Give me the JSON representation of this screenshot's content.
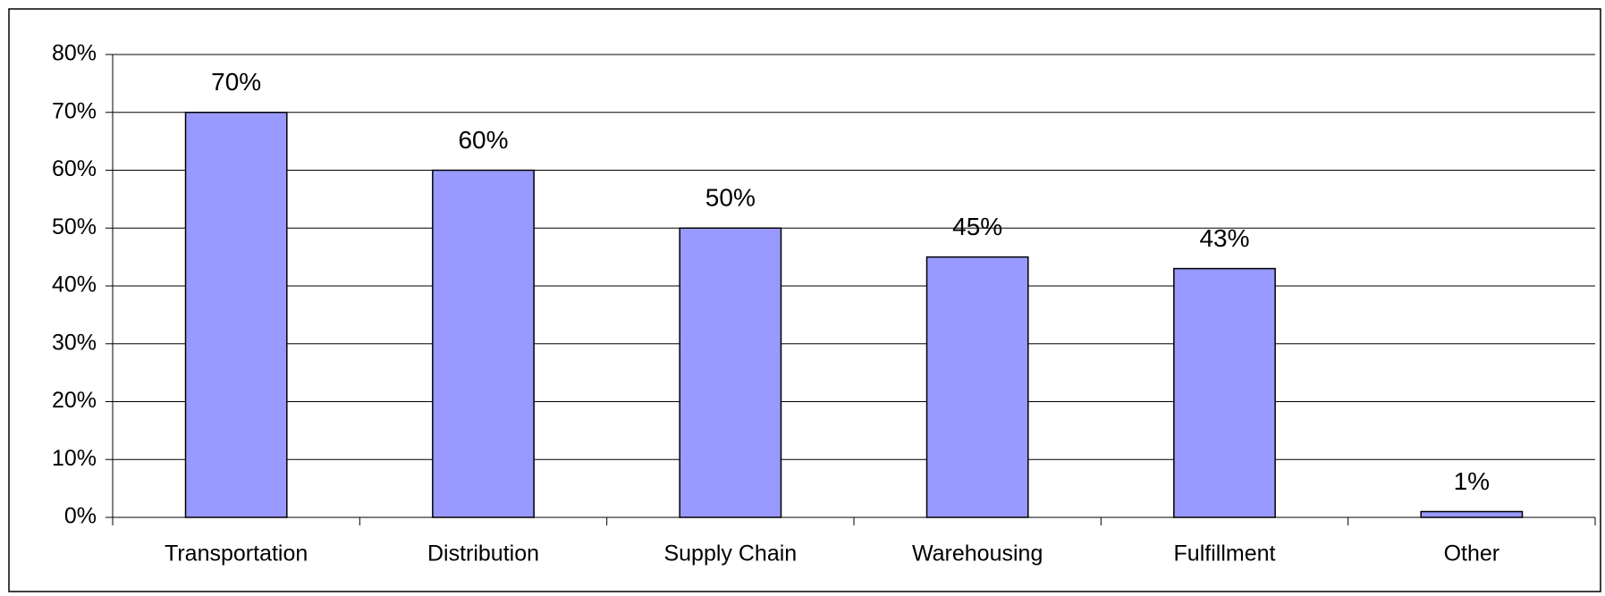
{
  "chart_data": {
    "type": "bar",
    "categories": [
      "Transportation",
      "Distribution",
      "Supply Chain",
      "Warehousing",
      "Fulfillment",
      "Other"
    ],
    "values": [
      70,
      60,
      50,
      45,
      43,
      1
    ],
    "value_labels": [
      "70%",
      "60%",
      "50%",
      "45%",
      "43%",
      "1%"
    ],
    "color": "#9999ff",
    "ylim": [
      0,
      80
    ],
    "yticks": [
      {
        "value": 0,
        "label": "0%"
      },
      {
        "value": 10,
        "label": "10%"
      },
      {
        "value": 20,
        "label": "20%"
      },
      {
        "value": 30,
        "label": "30%"
      },
      {
        "value": 40,
        "label": "40%"
      },
      {
        "value": 50,
        "label": "50%"
      },
      {
        "value": 60,
        "label": "60%"
      },
      {
        "value": 70,
        "label": "70%"
      },
      {
        "value": 80,
        "label": "80%"
      }
    ],
    "grid": true
  }
}
